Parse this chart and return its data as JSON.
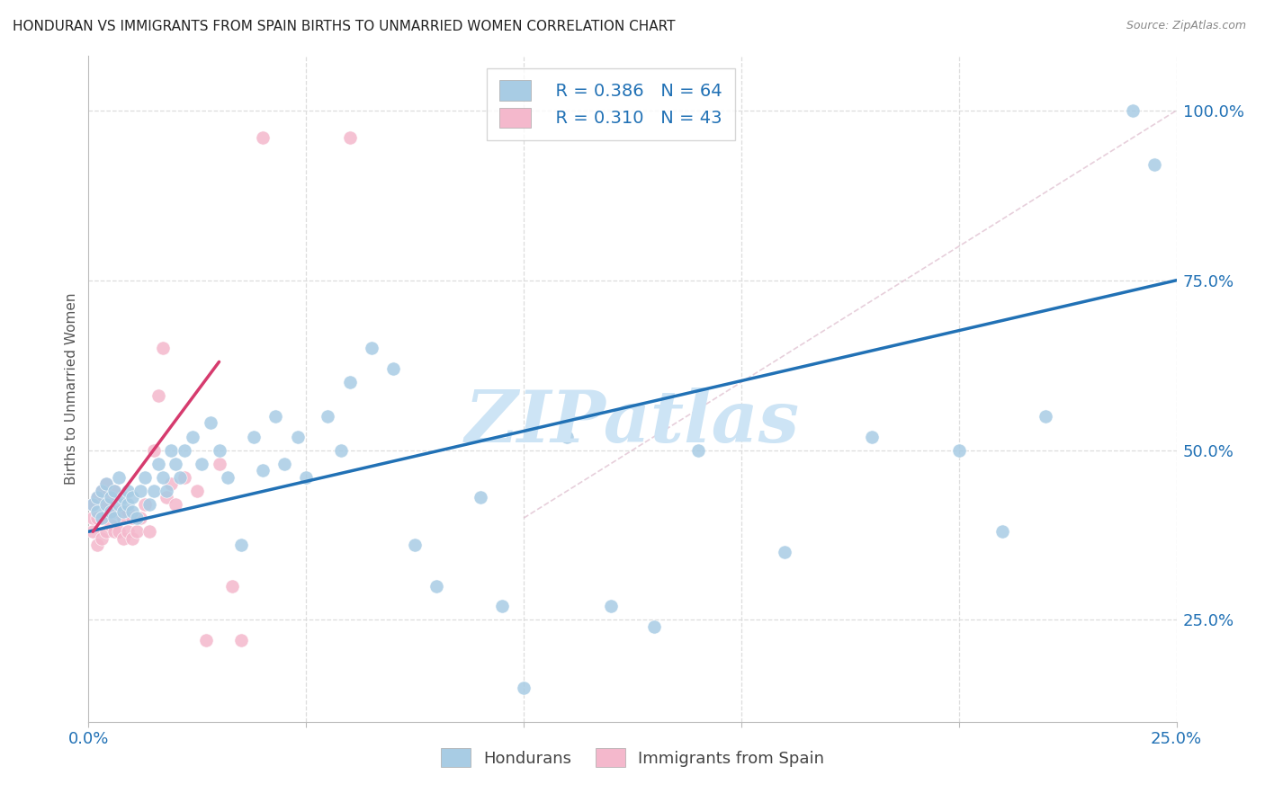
{
  "title": "HONDURAN VS IMMIGRANTS FROM SPAIN BIRTHS TO UNMARRIED WOMEN CORRELATION CHART",
  "source": "Source: ZipAtlas.com",
  "ylabel": "Births to Unmarried Women",
  "legend_blue_R": "R = 0.386",
  "legend_blue_N": "N = 64",
  "legend_pink_R": "R = 0.310",
  "legend_pink_N": "N = 43",
  "legend_blue_label": "Hondurans",
  "legend_pink_label": "Immigrants from Spain",
  "xlim": [
    0.0,
    0.25
  ],
  "ylim": [
    0.1,
    1.08
  ],
  "yticks": [
    0.25,
    0.5,
    0.75,
    1.0
  ],
  "ytick_labels": [
    "25.0%",
    "50.0%",
    "75.0%",
    "100.0%"
  ],
  "xticks": [
    0.0,
    0.05,
    0.1,
    0.15,
    0.2,
    0.25
  ],
  "xtick_labels": [
    "0.0%",
    "",
    "",
    "",
    "",
    "25.0%"
  ],
  "blue_color": "#a8cce4",
  "pink_color": "#f4b8cc",
  "blue_trend_color": "#2171b5",
  "pink_trend_color": "#d63b6e",
  "diag_line_color": "#cccccc",
  "grid_color": "#dddddd",
  "title_color": "#222222",
  "axis_label_color": "#555555",
  "tick_label_color_right": "#2171b5",
  "watermark_text": "ZIPatlas",
  "watermark_color": "#cde4f5",
  "blue_dots_x": [
    0.001,
    0.002,
    0.002,
    0.003,
    0.003,
    0.004,
    0.004,
    0.005,
    0.005,
    0.006,
    0.006,
    0.007,
    0.007,
    0.008,
    0.008,
    0.009,
    0.009,
    0.01,
    0.01,
    0.011,
    0.012,
    0.013,
    0.014,
    0.015,
    0.016,
    0.017,
    0.018,
    0.019,
    0.02,
    0.021,
    0.022,
    0.024,
    0.026,
    0.028,
    0.03,
    0.032,
    0.035,
    0.038,
    0.04,
    0.043,
    0.045,
    0.048,
    0.05,
    0.055,
    0.058,
    0.06,
    0.065,
    0.07,
    0.075,
    0.08,
    0.09,
    0.095,
    0.1,
    0.11,
    0.12,
    0.13,
    0.14,
    0.16,
    0.18,
    0.2,
    0.21,
    0.22,
    0.24,
    0.245
  ],
  "blue_dots_y": [
    0.42,
    0.41,
    0.43,
    0.4,
    0.44,
    0.42,
    0.45,
    0.41,
    0.43,
    0.4,
    0.44,
    0.42,
    0.46,
    0.41,
    0.43,
    0.42,
    0.44,
    0.41,
    0.43,
    0.4,
    0.44,
    0.46,
    0.42,
    0.44,
    0.48,
    0.46,
    0.44,
    0.5,
    0.48,
    0.46,
    0.5,
    0.52,
    0.48,
    0.54,
    0.5,
    0.46,
    0.36,
    0.52,
    0.47,
    0.55,
    0.48,
    0.52,
    0.46,
    0.55,
    0.5,
    0.6,
    0.65,
    0.62,
    0.36,
    0.3,
    0.43,
    0.27,
    0.15,
    0.52,
    0.27,
    0.24,
    0.5,
    0.35,
    0.52,
    0.5,
    0.38,
    0.55,
    1.0,
    0.92
  ],
  "pink_dots_x": [
    0.001,
    0.001,
    0.001,
    0.002,
    0.002,
    0.002,
    0.003,
    0.003,
    0.003,
    0.004,
    0.004,
    0.004,
    0.005,
    0.005,
    0.006,
    0.006,
    0.006,
    0.007,
    0.007,
    0.008,
    0.008,
    0.009,
    0.009,
    0.01,
    0.01,
    0.011,
    0.012,
    0.013,
    0.014,
    0.015,
    0.016,
    0.017,
    0.018,
    0.019,
    0.02,
    0.022,
    0.025,
    0.027,
    0.03,
    0.033,
    0.035,
    0.04,
    0.06
  ],
  "pink_dots_y": [
    0.38,
    0.4,
    0.42,
    0.36,
    0.4,
    0.43,
    0.37,
    0.4,
    0.44,
    0.38,
    0.42,
    0.45,
    0.39,
    0.43,
    0.38,
    0.41,
    0.44,
    0.38,
    0.41,
    0.37,
    0.4,
    0.38,
    0.41,
    0.37,
    0.4,
    0.38,
    0.4,
    0.42,
    0.38,
    0.5,
    0.58,
    0.65,
    0.43,
    0.45,
    0.42,
    0.46,
    0.44,
    0.22,
    0.48,
    0.3,
    0.22,
    0.96,
    0.96
  ],
  "blue_trend_x": [
    0.0,
    0.25
  ],
  "blue_trend_y": [
    0.38,
    0.75
  ],
  "pink_trend_x": [
    0.001,
    0.03
  ],
  "pink_trend_y": [
    0.38,
    0.63
  ],
  "diag_line_x": [
    0.1,
    0.25
  ],
  "diag_line_y": [
    0.4,
    1.0
  ]
}
